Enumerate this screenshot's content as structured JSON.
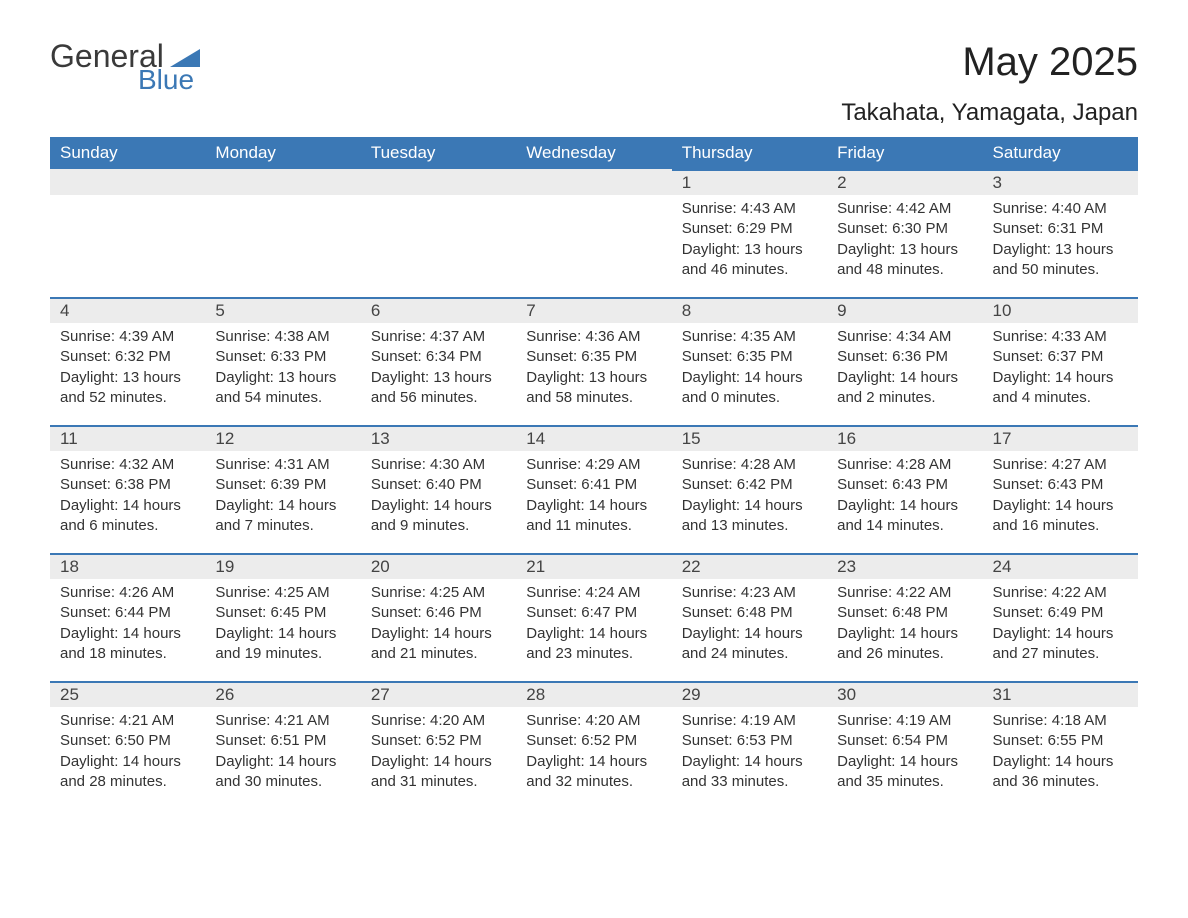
{
  "logo": {
    "top": "General",
    "bottom": "Blue"
  },
  "title": "May 2025",
  "subtitle": "Takahata, Yamagata, Japan",
  "colors": {
    "header_bg": "#3b78b5",
    "header_text": "#ffffff",
    "daynum_bg": "#ececec",
    "border_top": "#3b78b5",
    "body_bg": "#ffffff",
    "text": "#333333",
    "logo_blue": "#3b78b5",
    "logo_gray": "#3a3a3a"
  },
  "typography": {
    "title_fontsize": 40,
    "subtitle_fontsize": 24,
    "header_fontsize": 17,
    "daynum_fontsize": 17,
    "body_fontsize": 15,
    "font_family": "Arial"
  },
  "layout": {
    "columns": 7,
    "rows": 5,
    "first_day_column_index": 4
  },
  "weekdays": [
    "Sunday",
    "Monday",
    "Tuesday",
    "Wednesday",
    "Thursday",
    "Friday",
    "Saturday"
  ],
  "days": [
    null,
    null,
    null,
    null,
    {
      "n": "1",
      "sunrise": "Sunrise: 4:43 AM",
      "sunset": "Sunset: 6:29 PM",
      "daylight": "Daylight: 13 hours and 46 minutes."
    },
    {
      "n": "2",
      "sunrise": "Sunrise: 4:42 AM",
      "sunset": "Sunset: 6:30 PM",
      "daylight": "Daylight: 13 hours and 48 minutes."
    },
    {
      "n": "3",
      "sunrise": "Sunrise: 4:40 AM",
      "sunset": "Sunset: 6:31 PM",
      "daylight": "Daylight: 13 hours and 50 minutes."
    },
    {
      "n": "4",
      "sunrise": "Sunrise: 4:39 AM",
      "sunset": "Sunset: 6:32 PM",
      "daylight": "Daylight: 13 hours and 52 minutes."
    },
    {
      "n": "5",
      "sunrise": "Sunrise: 4:38 AM",
      "sunset": "Sunset: 6:33 PM",
      "daylight": "Daylight: 13 hours and 54 minutes."
    },
    {
      "n": "6",
      "sunrise": "Sunrise: 4:37 AM",
      "sunset": "Sunset: 6:34 PM",
      "daylight": "Daylight: 13 hours and 56 minutes."
    },
    {
      "n": "7",
      "sunrise": "Sunrise: 4:36 AM",
      "sunset": "Sunset: 6:35 PM",
      "daylight": "Daylight: 13 hours and 58 minutes."
    },
    {
      "n": "8",
      "sunrise": "Sunrise: 4:35 AM",
      "sunset": "Sunset: 6:35 PM",
      "daylight": "Daylight: 14 hours and 0 minutes."
    },
    {
      "n": "9",
      "sunrise": "Sunrise: 4:34 AM",
      "sunset": "Sunset: 6:36 PM",
      "daylight": "Daylight: 14 hours and 2 minutes."
    },
    {
      "n": "10",
      "sunrise": "Sunrise: 4:33 AM",
      "sunset": "Sunset: 6:37 PM",
      "daylight": "Daylight: 14 hours and 4 minutes."
    },
    {
      "n": "11",
      "sunrise": "Sunrise: 4:32 AM",
      "sunset": "Sunset: 6:38 PM",
      "daylight": "Daylight: 14 hours and 6 minutes."
    },
    {
      "n": "12",
      "sunrise": "Sunrise: 4:31 AM",
      "sunset": "Sunset: 6:39 PM",
      "daylight": "Daylight: 14 hours and 7 minutes."
    },
    {
      "n": "13",
      "sunrise": "Sunrise: 4:30 AM",
      "sunset": "Sunset: 6:40 PM",
      "daylight": "Daylight: 14 hours and 9 minutes."
    },
    {
      "n": "14",
      "sunrise": "Sunrise: 4:29 AM",
      "sunset": "Sunset: 6:41 PM",
      "daylight": "Daylight: 14 hours and 11 minutes."
    },
    {
      "n": "15",
      "sunrise": "Sunrise: 4:28 AM",
      "sunset": "Sunset: 6:42 PM",
      "daylight": "Daylight: 14 hours and 13 minutes."
    },
    {
      "n": "16",
      "sunrise": "Sunrise: 4:28 AM",
      "sunset": "Sunset: 6:43 PM",
      "daylight": "Daylight: 14 hours and 14 minutes."
    },
    {
      "n": "17",
      "sunrise": "Sunrise: 4:27 AM",
      "sunset": "Sunset: 6:43 PM",
      "daylight": "Daylight: 14 hours and 16 minutes."
    },
    {
      "n": "18",
      "sunrise": "Sunrise: 4:26 AM",
      "sunset": "Sunset: 6:44 PM",
      "daylight": "Daylight: 14 hours and 18 minutes."
    },
    {
      "n": "19",
      "sunrise": "Sunrise: 4:25 AM",
      "sunset": "Sunset: 6:45 PM",
      "daylight": "Daylight: 14 hours and 19 minutes."
    },
    {
      "n": "20",
      "sunrise": "Sunrise: 4:25 AM",
      "sunset": "Sunset: 6:46 PM",
      "daylight": "Daylight: 14 hours and 21 minutes."
    },
    {
      "n": "21",
      "sunrise": "Sunrise: 4:24 AM",
      "sunset": "Sunset: 6:47 PM",
      "daylight": "Daylight: 14 hours and 23 minutes."
    },
    {
      "n": "22",
      "sunrise": "Sunrise: 4:23 AM",
      "sunset": "Sunset: 6:48 PM",
      "daylight": "Daylight: 14 hours and 24 minutes."
    },
    {
      "n": "23",
      "sunrise": "Sunrise: 4:22 AM",
      "sunset": "Sunset: 6:48 PM",
      "daylight": "Daylight: 14 hours and 26 minutes."
    },
    {
      "n": "24",
      "sunrise": "Sunrise: 4:22 AM",
      "sunset": "Sunset: 6:49 PM",
      "daylight": "Daylight: 14 hours and 27 minutes."
    },
    {
      "n": "25",
      "sunrise": "Sunrise: 4:21 AM",
      "sunset": "Sunset: 6:50 PM",
      "daylight": "Daylight: 14 hours and 28 minutes."
    },
    {
      "n": "26",
      "sunrise": "Sunrise: 4:21 AM",
      "sunset": "Sunset: 6:51 PM",
      "daylight": "Daylight: 14 hours and 30 minutes."
    },
    {
      "n": "27",
      "sunrise": "Sunrise: 4:20 AM",
      "sunset": "Sunset: 6:52 PM",
      "daylight": "Daylight: 14 hours and 31 minutes."
    },
    {
      "n": "28",
      "sunrise": "Sunrise: 4:20 AM",
      "sunset": "Sunset: 6:52 PM",
      "daylight": "Daylight: 14 hours and 32 minutes."
    },
    {
      "n": "29",
      "sunrise": "Sunrise: 4:19 AM",
      "sunset": "Sunset: 6:53 PM",
      "daylight": "Daylight: 14 hours and 33 minutes."
    },
    {
      "n": "30",
      "sunrise": "Sunrise: 4:19 AM",
      "sunset": "Sunset: 6:54 PM",
      "daylight": "Daylight: 14 hours and 35 minutes."
    },
    {
      "n": "31",
      "sunrise": "Sunrise: 4:18 AM",
      "sunset": "Sunset: 6:55 PM",
      "daylight": "Daylight: 14 hours and 36 minutes."
    }
  ]
}
